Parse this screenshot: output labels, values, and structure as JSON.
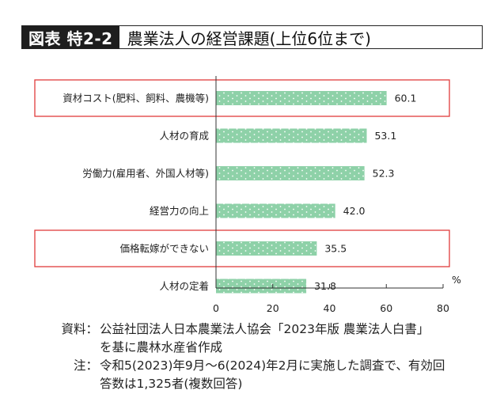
{
  "header": {
    "figure_label": "図表 特2-2",
    "title": "農業法人の経営課題(上位6位まで)"
  },
  "chart_data": {
    "type": "bar",
    "orientation": "horizontal",
    "categories": [
      "資材コスト(肥料、飼料、農機等)",
      "人材の育成",
      "労働力(雇用者、外国人材等)",
      "経営力の向上",
      "価格転嫁ができない",
      "人材の定着"
    ],
    "values": [
      60.1,
      53.1,
      52.3,
      42.0,
      35.5,
      31.8
    ],
    "value_labels": [
      "60.1",
      "53.1",
      "52.3",
      "42.0",
      "35.5",
      "31.8"
    ],
    "highlighted": [
      "資材コスト(肥料、飼料、農機等)",
      "価格転嫁ができない"
    ],
    "xlim": [
      0,
      80
    ],
    "xticks": [
      0,
      20,
      40,
      60,
      80
    ],
    "unit": "%",
    "bar_color": "#8ed1a8",
    "highlight_color": "#e03c3c",
    "grid": false
  },
  "notes": [
    {
      "key": "資料：",
      "lines": [
        "公益社団法人日本農業法人協会「2023年版 農業法人白書」",
        "を基に農林水産省作成"
      ]
    },
    {
      "key": "注：",
      "lines": [
        "令和5(2023)年9月～6(2024)年2月に実施した調査で、有効回",
        "答数は1,325者(複数回答)"
      ]
    }
  ]
}
